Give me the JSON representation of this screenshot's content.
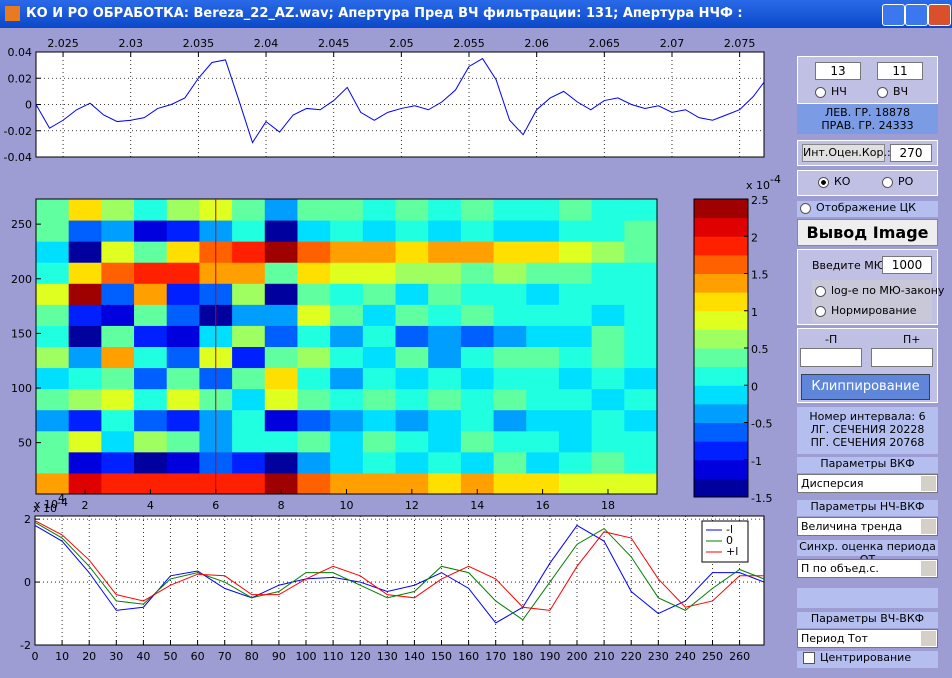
{
  "window": {
    "title": "КО И РО ОБРАБОТКА: Bereza_22_AZ.wav;  Апертура Пред ВЧ фильтрации: 131;  Апертура НЧФ :"
  },
  "chart_data": [
    {
      "type": "line",
      "xaxis_position": "top",
      "grid": true,
      "xlim": [
        2.023,
        2.0768
      ],
      "ylim": [
        -0.04,
        0.04
      ],
      "xticks": [
        2.025,
        2.03,
        2.035,
        2.04,
        2.045,
        2.05,
        2.055,
        2.06,
        2.065,
        2.07,
        2.075
      ],
      "yticks": [
        -0.04,
        -0.02,
        0,
        0.02,
        0.04
      ],
      "x": [
        2.023,
        2.024,
        2.025,
        2.026,
        2.027,
        2.028,
        2.029,
        2.03,
        2.031,
        2.032,
        2.033,
        2.034,
        2.035,
        2.036,
        2.037,
        2.038,
        2.039,
        2.04,
        2.041,
        2.042,
        2.043,
        2.044,
        2.045,
        2.046,
        2.047,
        2.048,
        2.049,
        2.05,
        2.051,
        2.052,
        2.053,
        2.054,
        2.055,
        2.056,
        2.057,
        2.058,
        2.059,
        2.06,
        2.061,
        2.062,
        2.063,
        2.064,
        2.065,
        2.066,
        2.067,
        2.068,
        2.069,
        2.07,
        2.071,
        2.072,
        2.073,
        2.074,
        2.075,
        2.076,
        2.0768
      ],
      "series": [
        {
          "color": "#0000ff",
          "values": [
            0,
            -0.018,
            -0.012,
            -0.004,
            0.001,
            -0.008,
            -0.013,
            -0.012,
            -0.01,
            -0.003,
            0,
            0.005,
            0.02,
            0.032,
            0.034,
            0.003,
            -0.029,
            -0.013,
            -0.021,
            -0.008,
            -0.003,
            -0.004,
            0.003,
            0.013,
            -0.006,
            -0.012,
            -0.006,
            -0.003,
            -0.001,
            -0.004,
            0.002,
            0.011,
            0.029,
            0.035,
            0.019,
            -0.012,
            -0.023,
            -0.004,
            0.005,
            0.01,
            0.002,
            -0.004,
            0.003,
            0.005,
            0,
            -0.003,
            -0.001,
            -0.006,
            -0.004,
            -0.01,
            -0.012,
            -0.008,
            -0.004,
            0.006,
            0.017
          ]
        }
      ]
    },
    {
      "type": "heatmap",
      "colormap": "jet",
      "xlim": [
        0.5,
        19.5
      ],
      "ylim": [
        3,
        273
      ],
      "clim": [
        -1.5,
        2.5
      ],
      "xticks": [
        2,
        4,
        6,
        8,
        10,
        12,
        14,
        16,
        18
      ],
      "yticks": [
        50,
        100,
        150,
        200,
        250
      ],
      "x_multiplier": {
        "base": "x 10",
        "exponent": "4"
      },
      "colorbar_multiplier": {
        "base": "x 10",
        "exponent": "-4"
      },
      "colorbar_ticks": [
        -1.5,
        -1,
        -0.5,
        0,
        0.5,
        1,
        1.5,
        2,
        2.5
      ],
      "cursor_x": 6,
      "cursor_color": "#cc0000",
      "z": [
        [
          1.5,
          2.2,
          1.8,
          2.0,
          1.9,
          2.0,
          1.8,
          2.4,
          1.6,
          1.4,
          1.5,
          1.3,
          1.2,
          1.3,
          1.2,
          1.1,
          1.0,
          0.9,
          0.8
        ],
        [
          0.3,
          -1.2,
          -0.8,
          -1.3,
          -1.0,
          -0.6,
          -0.9,
          -1.4,
          -0.3,
          -0.2,
          0.1,
          -0.2,
          0.2,
          -0.1,
          0.3,
          0.0,
          0.2,
          0.4,
          0.1
        ],
        [
          0.5,
          0.8,
          -0.2,
          0.6,
          0.3,
          -0.4,
          0.2,
          0.1,
          0.4,
          -0.2,
          0.3,
          0.2,
          -0.1,
          0.3,
          0.1,
          0.2,
          0.0,
          0.1,
          0.2
        ],
        [
          -0.3,
          -0.8,
          0.2,
          -0.6,
          -0.9,
          -0.4,
          0.1,
          -1.0,
          -0.5,
          -0.3,
          0.0,
          -0.4,
          -0.2,
          0.1,
          -0.3,
          0.0,
          -0.2,
          0.1,
          0.0
        ],
        [
          0.4,
          0.6,
          0.9,
          0.2,
          1.0,
          0.3,
          -0.2,
          0.8,
          0.4,
          0.1,
          0.3,
          0.2,
          0.5,
          0.1,
          0.3,
          0.2,
          0.1,
          0.0,
          0.1
        ],
        [
          -0.2,
          0.2,
          0.5,
          -0.6,
          0.3,
          -0.5,
          0.4,
          1.2,
          0.2,
          -0.3,
          0.1,
          -0.2,
          0.2,
          -0.1,
          0.2,
          0.1,
          -0.1,
          0.2,
          0.0
        ],
        [
          0.6,
          -0.4,
          1.3,
          0.2,
          -0.5,
          0.8,
          -0.8,
          0.3,
          0.6,
          0.2,
          -0.2,
          0.3,
          -0.3,
          0.1,
          0.3,
          0.4,
          0.2,
          0.4,
          0.1
        ],
        [
          0.1,
          -1.4,
          0.4,
          -0.8,
          -1.1,
          -0.2,
          0.6,
          -0.7,
          0.1,
          -0.4,
          0.2,
          -0.5,
          -0.4,
          -0.6,
          -0.3,
          -0.2,
          0.0,
          0.3,
          0.1
        ],
        [
          0.3,
          -0.9,
          -1.2,
          0.5,
          -0.6,
          -1.3,
          -0.4,
          -0.3,
          0.9,
          0.4,
          0.0,
          0.3,
          0.2,
          0.4,
          0.1,
          0.2,
          0.1,
          0.0,
          0.2
        ],
        [
          0.9,
          2.3,
          -0.5,
          1.3,
          -0.8,
          -0.7,
          0.6,
          -1.4,
          0.5,
          0.2,
          0.4,
          0.0,
          0.3,
          0.1,
          0.2,
          0.0,
          0.1,
          0.2,
          0.1
        ],
        [
          0.2,
          1.2,
          1.6,
          2.0,
          1.8,
          1.3,
          1.4,
          0.4,
          1.2,
          0.9,
          0.8,
          0.6,
          0.7,
          0.5,
          0.6,
          0.4,
          0.3,
          0.2,
          0.1
        ],
        [
          -0.2,
          -1.4,
          0.8,
          0.3,
          1.2,
          1.6,
          1.9,
          2.3,
          1.6,
          1.5,
          1.3,
          1.2,
          1.4,
          1.3,
          1.2,
          1.1,
          0.9,
          0.7,
          0.3
        ],
        [
          0.3,
          -0.6,
          -0.3,
          -1.2,
          -0.9,
          -0.4,
          0.1,
          -1.4,
          -0.2,
          0.1,
          -0.1,
          0.2,
          0.0,
          0.1,
          -0.1,
          0.0,
          0.2,
          0.1,
          0.3
        ],
        [
          0.4,
          1.1,
          0.7,
          0.2,
          0.6,
          0.8,
          0.3,
          -0.3,
          0.5,
          0.3,
          0.2,
          0.4,
          0.1,
          0.3,
          0.2,
          0.1,
          0.3,
          0.2,
          0.1
        ]
      ]
    },
    {
      "type": "line",
      "xaxis_position": "bottom",
      "grid": true,
      "legend": "upper right",
      "y_multiplier": {
        "base": "x 10",
        "exponent": "-4"
      },
      "xlim": [
        0,
        269
      ],
      "ylim": [
        -2,
        2.1
      ],
      "xticks": [
        0,
        10,
        20,
        30,
        40,
        50,
        60,
        70,
        80,
        90,
        100,
        110,
        120,
        130,
        140,
        150,
        160,
        170,
        180,
        190,
        200,
        210,
        220,
        230,
        240,
        250,
        260
      ],
      "yticks": [
        -2,
        0,
        2
      ],
      "x": [
        0,
        10,
        20,
        30,
        40,
        50,
        60,
        70,
        80,
        90,
        100,
        110,
        120,
        130,
        140,
        150,
        160,
        170,
        180,
        190,
        200,
        210,
        220,
        230,
        240,
        250,
        260,
        269
      ],
      "series": [
        {
          "name": "-l",
          "color": "#0000ff",
          "values": [
            1.8,
            1.3,
            0.3,
            -0.9,
            -0.8,
            0.2,
            0.35,
            -0.2,
            -0.5,
            -0.1,
            0.1,
            0.15,
            0.0,
            -0.3,
            -0.1,
            0.3,
            -0.2,
            -1.3,
            -0.8,
            0.6,
            1.8,
            1.3,
            -0.3,
            -1.0,
            -0.6,
            0.3,
            0.3,
            0.0
          ]
        },
        {
          "name": "0",
          "color": "#008000",
          "values": [
            1.9,
            1.4,
            0.5,
            -0.6,
            -0.7,
            0.1,
            0.3,
            0.0,
            -0.5,
            -0.3,
            0.3,
            0.3,
            -0.1,
            -0.5,
            -0.3,
            0.5,
            0.3,
            -0.6,
            -1.2,
            0.0,
            1.2,
            1.7,
            0.8,
            -0.5,
            -0.9,
            -0.2,
            0.4,
            0.1
          ]
        },
        {
          "name": "+l",
          "color": "#ff0000",
          "values": [
            1.95,
            1.5,
            0.7,
            -0.4,
            -0.6,
            -0.1,
            0.25,
            0.2,
            -0.4,
            -0.4,
            0.1,
            0.5,
            0.2,
            -0.4,
            -0.5,
            0.1,
            0.5,
            0.1,
            -0.8,
            -0.9,
            0.5,
            1.6,
            1.4,
            0.1,
            -0.8,
            -0.6,
            0.2,
            0.2
          ]
        }
      ]
    }
  ],
  "panel": {
    "lf_value": "13",
    "hf_value": "11",
    "lf_label": "НЧ",
    "hf_label": "ВЧ",
    "left_bound": "ЛЕВ. ГР. 18878",
    "right_bound": "ПРАВ. ГР. 24333",
    "corr_label": "Инт.Оцен.Кор.:",
    "corr_value": "270",
    "ko": "КО",
    "ro": "РО",
    "show_ck": "Отображение ЦК",
    "output_image": "Вывод Image",
    "mu_label": "Введите МЮ:",
    "mu_value": "1000",
    "log_mu": "log-e по МЮ-закону",
    "normalize": "Нормирование",
    "minus_p": "-П",
    "plus_p": "П+",
    "clip": "Клиппирование",
    "interval": "Номер интервала: 6",
    "lg_section": "ЛГ. СЕЧЕНИЯ 20228",
    "pg_section": "ПГ. СЕЧЕНИЯ 20768",
    "vkf_label": "Параметры ВКФ",
    "vkf_value": "Дисперсия",
    "lf_vkf_label": "Параметры НЧ-ВКФ",
    "lf_vkf_value": "Величина тренда",
    "sync_label": "Синхр. оценка периода ОТ",
    "sync_value": "П по объед.с.",
    "hf_vkf_label": "Параметры ВЧ-ВКФ",
    "hf_vkf_value": "Период Тот",
    "centering": "Центрирование"
  }
}
